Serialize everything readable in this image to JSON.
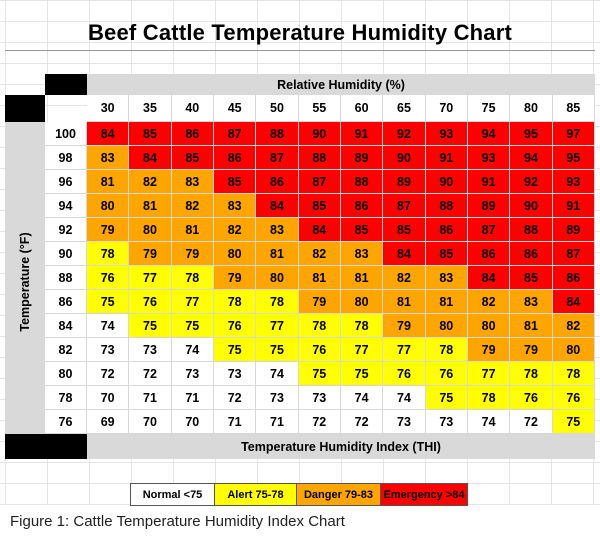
{
  "title": "Beef Cattle Temperature Humidity Chart",
  "caption": "Figure 1: Cattle Temperature Humidity Index Chart",
  "colors": {
    "normal": "#ffffff",
    "alert": "#ffff00",
    "danger": "#ffa500",
    "emergency": "#ff0000",
    "header_gray": "#d9d9d9"
  },
  "legend": [
    {
      "label": "Normal <75",
      "level": "normal"
    },
    {
      "label": "Alert 75-78",
      "level": "alert"
    },
    {
      "label": "Danger 79-83",
      "level": "danger"
    },
    {
      "label": "Emergency >84",
      "level": "emergency"
    }
  ],
  "chart_data": {
    "type": "heatmap",
    "title": "Beef Cattle Temperature Humidity Chart",
    "xlabel": "Relative Humidity (%)",
    "ylabel": "Temperature (°F)",
    "value_label": "Temperature Humidity Index (THI)",
    "x": [
      "30",
      "35",
      "40",
      "45",
      "50",
      "55",
      "60",
      "65",
      "70",
      "75",
      "80",
      "85"
    ],
    "y": [
      "100",
      "98",
      "96",
      "94",
      "92",
      "90",
      "88",
      "86",
      "84",
      "82",
      "80",
      "78",
      "76"
    ],
    "values": [
      [
        84,
        85,
        86,
        87,
        88,
        90,
        91,
        92,
        93,
        94,
        95,
        97
      ],
      [
        83,
        84,
        85,
        86,
        87,
        88,
        89,
        90,
        91,
        93,
        94,
        95
      ],
      [
        81,
        82,
        83,
        85,
        86,
        87,
        88,
        89,
        90,
        91,
        92,
        93
      ],
      [
        80,
        81,
        82,
        83,
        84,
        85,
        86,
        87,
        88,
        89,
        90,
        91
      ],
      [
        79,
        80,
        81,
        82,
        83,
        84,
        85,
        85,
        86,
        87,
        88,
        89
      ],
      [
        78,
        79,
        79,
        80,
        81,
        82,
        83,
        84,
        85,
        86,
        86,
        87
      ],
      [
        76,
        77,
        78,
        79,
        80,
        81,
        81,
        82,
        83,
        84,
        85,
        86
      ],
      [
        75,
        76,
        77,
        78,
        78,
        79,
        80,
        81,
        81,
        82,
        83,
        84
      ],
      [
        74,
        75,
        75,
        76,
        77,
        78,
        78,
        79,
        80,
        80,
        81,
        82
      ],
      [
        73,
        73,
        74,
        75,
        75,
        76,
        77,
        77,
        78,
        79,
        79,
        80
      ],
      [
        72,
        72,
        73,
        73,
        74,
        75,
        75,
        76,
        76,
        77,
        78,
        78
      ],
      [
        70,
        71,
        71,
        72,
        73,
        73,
        74,
        74,
        75,
        78,
        76,
        76
      ],
      [
        69,
        70,
        70,
        71,
        71,
        72,
        72,
        73,
        73,
        74,
        72,
        75
      ]
    ],
    "levels": [
      [
        "emergency",
        "emergency",
        "emergency",
        "emergency",
        "emergency",
        "emergency",
        "emergency",
        "emergency",
        "emergency",
        "emergency",
        "emergency",
        "emergency"
      ],
      [
        "danger",
        "emergency",
        "emergency",
        "emergency",
        "emergency",
        "emergency",
        "emergency",
        "emergency",
        "emergency",
        "emergency",
        "emergency",
        "emergency"
      ],
      [
        "danger",
        "danger",
        "danger",
        "emergency",
        "emergency",
        "emergency",
        "emergency",
        "emergency",
        "emergency",
        "emergency",
        "emergency",
        "emergency"
      ],
      [
        "danger",
        "danger",
        "danger",
        "danger",
        "emergency",
        "emergency",
        "emergency",
        "emergency",
        "emergency",
        "emergency",
        "emergency",
        "emergency"
      ],
      [
        "danger",
        "danger",
        "danger",
        "danger",
        "danger",
        "emergency",
        "emergency",
        "emergency",
        "emergency",
        "emergency",
        "emergency",
        "emergency"
      ],
      [
        "alert",
        "danger",
        "danger",
        "danger",
        "danger",
        "danger",
        "danger",
        "emergency",
        "emergency",
        "emergency",
        "emergency",
        "emergency"
      ],
      [
        "alert",
        "alert",
        "alert",
        "danger",
        "danger",
        "danger",
        "danger",
        "danger",
        "danger",
        "emergency",
        "emergency",
        "emergency"
      ],
      [
        "alert",
        "alert",
        "alert",
        "alert",
        "alert",
        "danger",
        "danger",
        "danger",
        "danger",
        "danger",
        "danger",
        "emergency"
      ],
      [
        "normal",
        "alert",
        "alert",
        "alert",
        "alert",
        "alert",
        "alert",
        "danger",
        "danger",
        "danger",
        "danger",
        "danger"
      ],
      [
        "normal",
        "normal",
        "normal",
        "alert",
        "alert",
        "alert",
        "alert",
        "alert",
        "alert",
        "danger",
        "danger",
        "danger"
      ],
      [
        "normal",
        "normal",
        "normal",
        "normal",
        "normal",
        "alert",
        "alert",
        "alert",
        "alert",
        "alert",
        "alert",
        "alert"
      ],
      [
        "normal",
        "normal",
        "normal",
        "normal",
        "normal",
        "normal",
        "normal",
        "normal",
        "alert",
        "alert",
        "alert",
        "alert"
      ],
      [
        "normal",
        "normal",
        "normal",
        "normal",
        "normal",
        "normal",
        "normal",
        "normal",
        "normal",
        "normal",
        "normal",
        "alert"
      ]
    ]
  }
}
